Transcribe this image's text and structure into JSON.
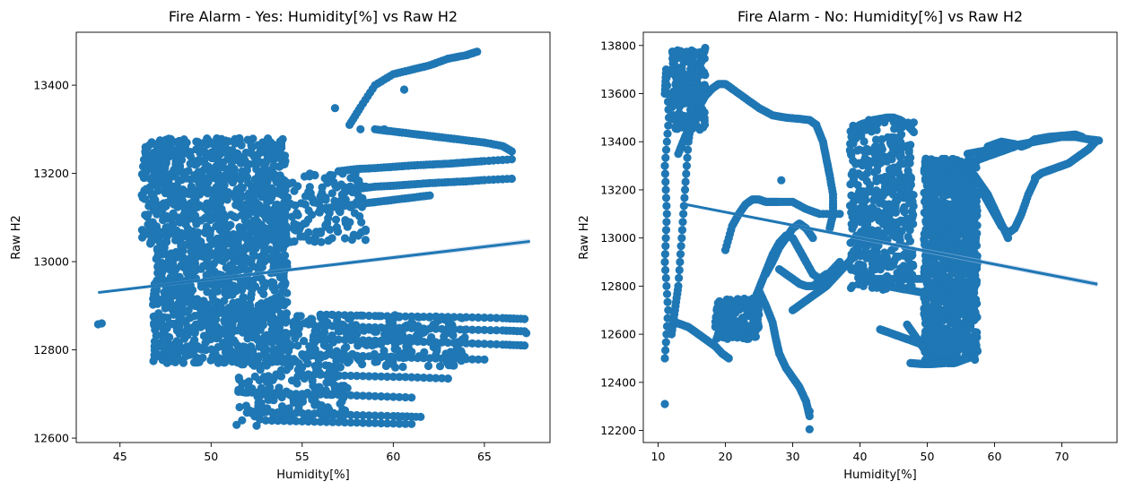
{
  "chart_data": [
    {
      "type": "scatter",
      "title": "Fire Alarm - Yes: Humidity[%] vs Raw H2",
      "xlabel": "Humidity[%]",
      "ylabel": "Raw H2",
      "xlim": [
        42.6,
        68.6
      ],
      "ylim": [
        12590,
        13520
      ],
      "xticks": [
        45,
        50,
        55,
        60,
        65
      ],
      "yticks": [
        12600,
        12800,
        13000,
        13200,
        13400
      ],
      "grid": false,
      "point_color": "#1f77b4",
      "regression_line": {
        "x": [
          43.8,
          67.5
        ],
        "y": [
          12930,
          13046
        ]
      },
      "clusters": [
        {
          "x": [
            46.8,
            54.2
          ],
          "y": [
            12770,
            13050
          ],
          "n": 900
        },
        {
          "x": [
            46.2,
            54.2
          ],
          "y": [
            13040,
            13280
          ],
          "n": 700
        },
        {
          "x": [
            52.0,
            58.5
          ],
          "y": [
            13040,
            13200
          ],
          "n": 200
        },
        {
          "x": [
            54.0,
            64.0
          ],
          "y": [
            12760,
            12880
          ],
          "n": 250
        },
        {
          "x": [
            51.5,
            57.5
          ],
          "y": [
            12640,
            12780
          ],
          "n": 160
        }
      ],
      "points": [
        {
          "x": 43.8,
          "y": 12858
        },
        {
          "x": 44.0,
          "y": 12860
        },
        {
          "x": 56.8,
          "y": 13348
        },
        {
          "x": 60.6,
          "y": 13390
        },
        {
          "x": 59.5,
          "y": 13300
        },
        {
          "x": 58.2,
          "y": 13300
        },
        {
          "x": 51.4,
          "y": 12630
        },
        {
          "x": 52.5,
          "y": 12628
        },
        {
          "x": 67.3,
          "y": 12838
        }
      ],
      "trails": [
        {
          "x": [
            57.6,
            58.2,
            59.0,
            60.0,
            61.0,
            62.0,
            63.0,
            64.0,
            64.6
          ],
          "y": [
            13310,
            13350,
            13400,
            13425,
            13435,
            13445,
            13460,
            13468,
            13476
          ]
        },
        {
          "x": [
            59.0,
            60.0,
            61.0,
            62.0,
            63.0,
            64.0,
            65.0,
            66.0,
            66.5
          ],
          "y": [
            13300,
            13295,
            13290,
            13285,
            13280,
            13275,
            13270,
            13262,
            13250
          ]
        },
        {
          "x": [
            57.0,
            58.0,
            59.0,
            60.0,
            61.0,
            62.0,
            63.0,
            64.0,
            65.0,
            66.5
          ],
          "y": [
            13205,
            13210,
            13212,
            13215,
            13218,
            13220,
            13222,
            13225,
            13228,
            13232
          ]
        },
        {
          "x": [
            58.0,
            59.0,
            60.0,
            61.0,
            62.0,
            63.0,
            64.0,
            65.0,
            66.5
          ],
          "y": [
            13165,
            13170,
            13172,
            13175,
            13178,
            13180,
            13182,
            13185,
            13188
          ]
        },
        {
          "x": [
            56.0,
            57.0,
            58.0,
            59.0,
            60.0,
            61.0,
            62.0
          ],
          "y": [
            13120,
            13125,
            13130,
            13135,
            13140,
            13145,
            13150
          ]
        },
        {
          "x": [
            56.0,
            58.0,
            60.0,
            62.0,
            64.0,
            66.0,
            67.2
          ],
          "y": [
            12880,
            12878,
            12876,
            12875,
            12874,
            12872,
            12870
          ]
        },
        {
          "x": [
            56.0,
            58.0,
            60.0,
            62.0,
            64.0,
            66.0,
            67.2
          ],
          "y": [
            12855,
            12852,
            12850,
            12848,
            12846,
            12844,
            12842
          ]
        },
        {
          "x": [
            56.0,
            58.0,
            60.0,
            62.0,
            64.0,
            66.0,
            67.2
          ],
          "y": [
            12825,
            12822,
            12820,
            12818,
            12815,
            12812,
            12810
          ]
        },
        {
          "x": [
            55.0,
            57.0,
            59.0,
            61.0,
            63.0,
            65.0
          ],
          "y": [
            12790,
            12788,
            12785,
            12782,
            12780,
            12778
          ]
        },
        {
          "x": [
            55.0,
            57.0,
            59.0,
            61.0,
            63.0
          ],
          "y": [
            12745,
            12742,
            12740,
            12738,
            12735
          ]
        },
        {
          "x": [
            51.5,
            53.0,
            55.0,
            57.0,
            59.0,
            61.0
          ],
          "y": [
            12705,
            12702,
            12700,
            12698,
            12695,
            12692
          ]
        },
        {
          "x": [
            52.0,
            54.0,
            56.0,
            58.0,
            60.0,
            61.5
          ],
          "y": [
            12660,
            12658,
            12655,
            12652,
            12650,
            12648
          ]
        },
        {
          "x": [
            53.0,
            55.0,
            57.0,
            59.0,
            61.0
          ],
          "y": [
            12640,
            12638,
            12636,
            12634,
            12632
          ]
        }
      ]
    },
    {
      "type": "scatter",
      "title": "Fire Alarm - No: Humidity[%] vs Raw H2",
      "xlabel": "Humidity[%]",
      "ylabel": "Raw H2",
      "xlim": [
        7.8,
        78.2
      ],
      "ylim": [
        12150,
        13855
      ],
      "xticks": [
        10,
        20,
        30,
        40,
        50,
        60,
        70
      ],
      "yticks": [
        12200,
        12400,
        12600,
        12800,
        13000,
        13200,
        13400,
        13600,
        13800
      ],
      "grid": false,
      "point_color": "#1f77b4",
      "regression_line": {
        "x": [
          14.0,
          75.3
        ],
        "y": [
          13140,
          12808
        ]
      },
      "clusters": [
        {
          "x": [
            49.5,
            57.5
          ],
          "y": [
            12490,
            13330
          ],
          "n": 1100
        },
        {
          "x": [
            38.5,
            48.0
          ],
          "y": [
            12780,
            13490
          ],
          "n": 500
        },
        {
          "x": [
            18.5,
            25.0
          ],
          "y": [
            12580,
            12750
          ],
          "n": 160
        },
        {
          "x": [
            12.0,
            17.0
          ],
          "y": [
            13450,
            13780
          ],
          "n": 200
        }
      ],
      "points": [
        {
          "x": 11.0,
          "y": 12310
        },
        {
          "x": 32.5,
          "y": 12205
        },
        {
          "x": 32.5,
          "y": 12280
        },
        {
          "x": 28.3,
          "y": 13240
        }
      ],
      "trails": [
        {
          "x": [
            11.0,
            11.5,
            11.0,
            11.3,
            11.0,
            11.6,
            11.2,
            11.0
          ],
          "y": [
            12500,
            12700,
            12900,
            13100,
            13300,
            13500,
            13700,
            13600
          ]
        },
        {
          "x": [
            12.0,
            12.5,
            13.0,
            13.5,
            14.0,
            14.5,
            15.0,
            15.5,
            16.0,
            16.5,
            17.0
          ],
          "y": [
            12600,
            12700,
            12800,
            13000,
            13200,
            13400,
            13500,
            13600,
            13700,
            13750,
            13790
          ]
        },
        {
          "x": [
            13.0,
            14.0,
            15.0,
            16.0,
            17.0,
            18.0,
            19.0,
            20.0,
            21.0
          ],
          "y": [
            13350,
            13420,
            13480,
            13540,
            13590,
            13620,
            13640,
            13640,
            13620
          ]
        },
        {
          "x": [
            21.0,
            23.0,
            25.0,
            27.0,
            29.0,
            31.0,
            32.5,
            33.5
          ],
          "y": [
            13620,
            13580,
            13540,
            13510,
            13500,
            13495,
            13490,
            13470
          ]
        },
        {
          "x": [
            33.5,
            34.5,
            35.0,
            35.5,
            36.0,
            36.0,
            35.5
          ],
          "y": [
            13470,
            13400,
            13330,
            13260,
            13180,
            13100,
            13040
          ]
        },
        {
          "x": [
            20.0,
            21.0,
            22.0,
            23.0,
            24.0,
            25.0,
            26.0,
            27.0,
            28.0,
            30.0,
            32.0,
            34.0,
            37.0
          ],
          "y": [
            12950,
            13050,
            13100,
            13140,
            13160,
            13160,
            13150,
            13150,
            13150,
            13150,
            13120,
            13100,
            13100
          ]
        },
        {
          "x": [
            12.5,
            13.5,
            14.5,
            15.5,
            16.5,
            17.5,
            18.5,
            19.5,
            20.5
          ],
          "y": [
            12650,
            12640,
            12630,
            12610,
            12590,
            12570,
            12550,
            12520,
            12500
          ]
        },
        {
          "x": [
            25.0,
            26.0,
            27.0,
            27.5,
            28.0,
            29.0,
            30.0,
            31.0,
            32.0,
            32.5
          ],
          "y": [
            12780,
            12720,
            12650,
            12580,
            12520,
            12460,
            12420,
            12380,
            12320,
            12260
          ]
        },
        {
          "x": [
            24.0,
            25.0,
            26.0,
            27.0,
            28.0,
            29.0,
            30.0,
            31.0,
            32.0,
            33.0,
            34.0,
            35.0
          ],
          "y": [
            12720,
            12790,
            12860,
            12930,
            12980,
            13010,
            13000,
            12950,
            12900,
            12850,
            12830,
            12850
          ]
        },
        {
          "x": [
            26.0,
            27.0,
            28.0,
            29.0,
            30.0,
            31.0,
            32.0,
            33.0
          ],
          "y": [
            12850,
            12900,
            12960,
            13000,
            13040,
            13060,
            13040,
            13000
          ]
        },
        {
          "x": [
            28.0,
            29.0,
            30.0,
            31.0,
            32.0,
            33.0,
            34.0,
            35.0,
            36.0,
            37.0
          ],
          "y": [
            12870,
            12850,
            12830,
            12810,
            12800,
            12800,
            12820,
            12840,
            12870,
            12900
          ]
        },
        {
          "x": [
            30.0,
            31.0,
            32.0,
            33.0,
            34.0,
            35.0,
            36.0,
            37.0,
            38.0,
            39.0
          ],
          "y": [
            12700,
            12720,
            12740,
            12760,
            12780,
            12800,
            12830,
            12860,
            12890,
            12920
          ]
        },
        {
          "x": [
            38.0,
            40.0,
            42.0,
            44.0,
            46.0,
            48.0,
            50.0
          ],
          "y": [
            12890,
            12850,
            12820,
            12800,
            12790,
            12780,
            12770
          ]
        },
        {
          "x": [
            40.0,
            42.0,
            44.0,
            46.0,
            48.0,
            50.0
          ],
          "y": [
            12830,
            12830,
            12830,
            12830,
            12830,
            12830
          ]
        },
        {
          "x": [
            43.0,
            44.0,
            45.0,
            46.0,
            47.0,
            48.0,
            49.0
          ],
          "y": [
            12620,
            12610,
            12600,
            12590,
            12580,
            12570,
            12560
          ]
        },
        {
          "x": [
            47.0,
            48.0,
            49.0,
            50.0,
            51.0,
            52.0,
            53.0,
            54.0,
            55.0,
            56.0,
            57.0
          ],
          "y": [
            12640,
            12600,
            12560,
            12520,
            12500,
            12490,
            12480,
            12480,
            12490,
            12500,
            12510
          ]
        },
        {
          "x": [
            47.5,
            48.5,
            49.5,
            50.5,
            51.5,
            52.5,
            53.5,
            54.5,
            55.5
          ],
          "y": [
            12480,
            12478,
            12476,
            12476,
            12478,
            12480,
            12485,
            12490,
            12495
          ]
        },
        {
          "x": [
            55.0,
            56.0,
            57.0,
            58.0,
            59.0,
            60.0,
            61.0,
            62.0,
            63.0
          ],
          "y": [
            13300,
            13310,
            13320,
            13330,
            13340,
            13350,
            13360,
            13370,
            13380
          ]
        },
        {
          "x": [
            56.0,
            58.0,
            60.0,
            62.0,
            64.0,
            66.0,
            68.0,
            70.0,
            72.0,
            74.0,
            75.5
          ],
          "y": [
            13350,
            13360,
            13370,
            13380,
            13390,
            13400,
            13410,
            13420,
            13420,
            13410,
            13405
          ]
        },
        {
          "x": [
            59.0,
            60.0,
            61.0,
            62.0,
            63.0,
            64.0,
            65.0,
            66.0,
            68.0,
            70.0,
            72.0,
            73.0
          ],
          "y": [
            13380,
            13390,
            13400,
            13395,
            13390,
            13380,
            13390,
            13410,
            13420,
            13425,
            13430,
            13420
          ]
        },
        {
          "x": [
            58.0,
            59.0,
            60.0,
            61.0,
            62.0,
            63.0,
            64.0,
            65.0,
            66.0
          ],
          "y": [
            13200,
            13150,
            13100,
            13050,
            13020,
            13040,
            13100,
            13180,
            13240
          ]
        },
        {
          "x": [
            66.0,
            67.0,
            68.0,
            69.0,
            70.0,
            71.0,
            72.0,
            73.0,
            74.0,
            75.0
          ],
          "y": [
            13250,
            13270,
            13280,
            13290,
            13300,
            13310,
            13330,
            13350,
            13370,
            13400
          ]
        },
        {
          "x": [
            57.0,
            58.0,
            59.0,
            60.0,
            61.0,
            62.0
          ],
          "y": [
            13260,
            13220,
            13180,
            13120,
            13060,
            13000
          ]
        },
        {
          "x": [
            39.0,
            40.0,
            41.0,
            42.0,
            43.0,
            44.0,
            45.0,
            46.0,
            47.0,
            48.0
          ],
          "y": [
            13450,
            13470,
            13480,
            13490,
            13495,
            13500,
            13500,
            13490,
            13470,
            13440
          ]
        }
      ]
    }
  ]
}
